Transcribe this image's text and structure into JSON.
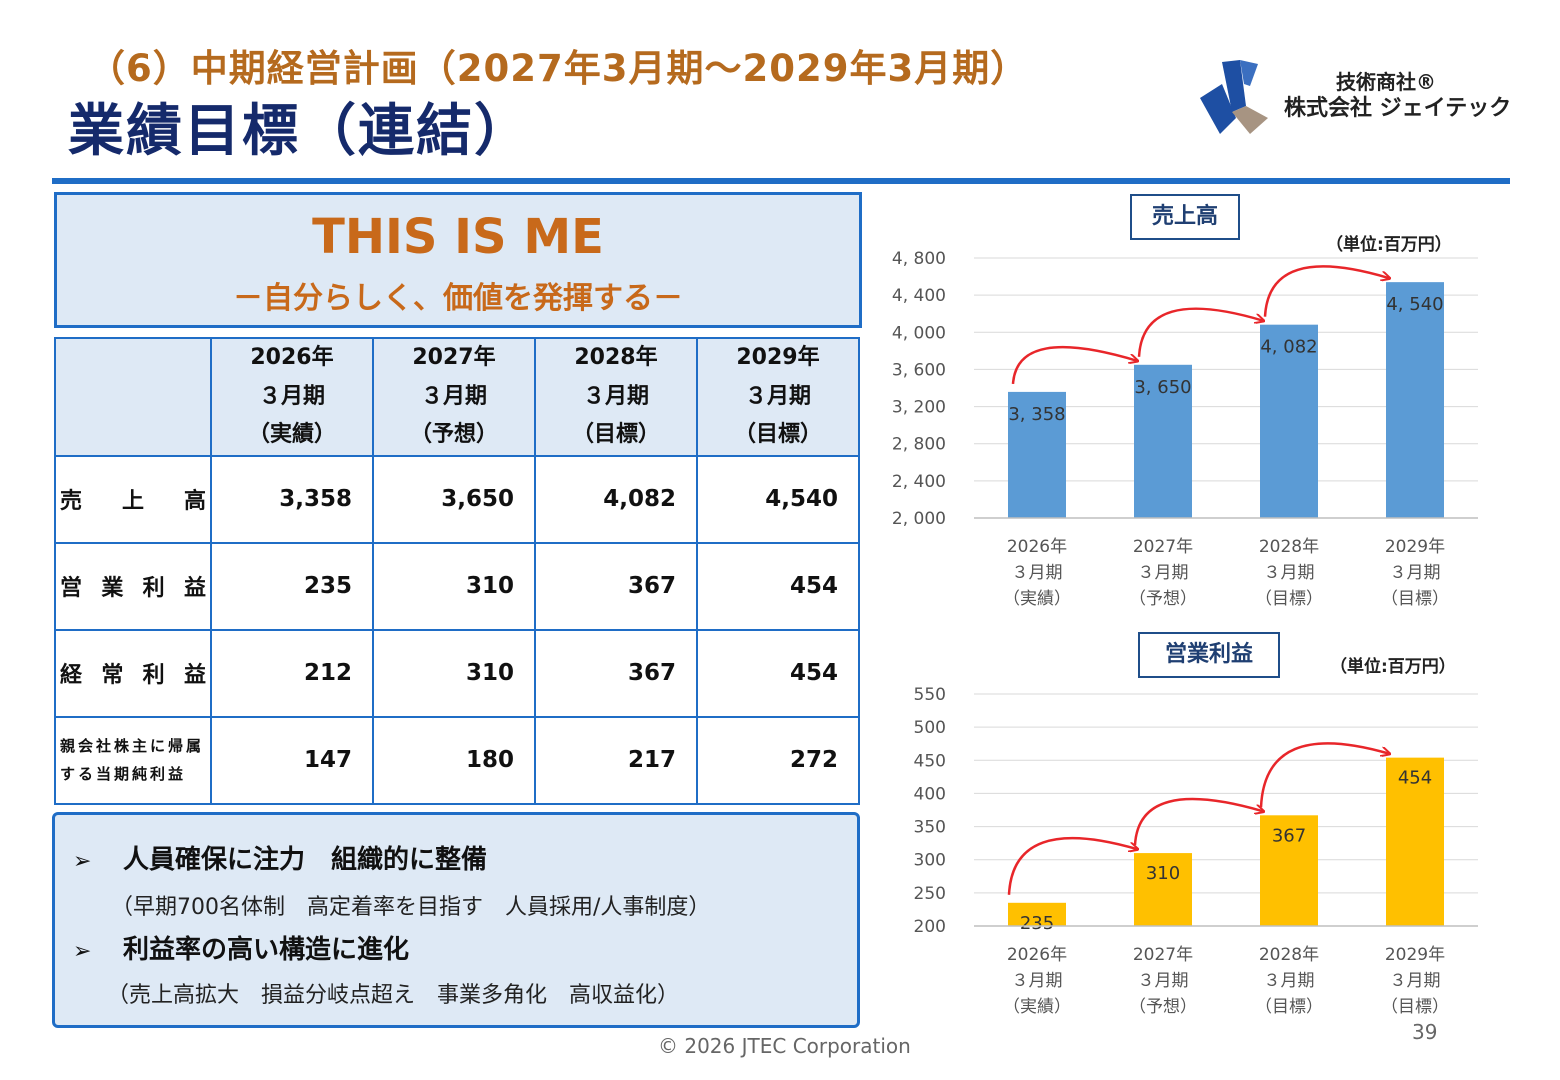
{
  "header": {
    "subtitle": "（6）中期経営計画（2027年3月期～2029年3月期）",
    "title": "業績目標（連結）",
    "logo_line1": "技術商社®",
    "logo_line2": "株式会社 ジェイテック",
    "brand_color": "#1f6dc6"
  },
  "banner": {
    "main": "THIS IS ME",
    "sub": "－自分らしく、価値を発揮する－"
  },
  "table": {
    "columns": [
      {
        "year": "2026年",
        "period": "３月期",
        "status": "（実績）"
      },
      {
        "year": "2027年",
        "period": "３月期",
        "status": "（予想）"
      },
      {
        "year": "2028年",
        "period": "３月期",
        "status": "（目標）"
      },
      {
        "year": "2029年",
        "period": "３月期",
        "status": "（目標）"
      }
    ],
    "rows": [
      {
        "label_chars": [
          "売",
          "上",
          "高"
        ],
        "values": [
          "3,358",
          "3,650",
          "4,082",
          "4,540"
        ]
      },
      {
        "label_chars": [
          "営",
          "業",
          "利",
          "益"
        ],
        "values": [
          "235",
          "310",
          "367",
          "454"
        ]
      },
      {
        "label_chars": [
          "経",
          "常",
          "利",
          "益"
        ],
        "values": [
          "212",
          "310",
          "367",
          "454"
        ]
      },
      {
        "label_line1": "親会社株主に帰属",
        "label_line2": "する当期純利益",
        "values": [
          "147",
          "180",
          "217",
          "272"
        ]
      }
    ]
  },
  "notes": {
    "bullet1": "人員確保に注力　組織的に整備",
    "sub1": "（早期700名体制　高定着率を目指す　人員採用/人事制度）",
    "bullet2": "利益率の高い構造に進化",
    "sub2": "（売上高拡大　損益分岐点超え　事業多角化　高収益化）",
    "marker": "➢"
  },
  "footer": {
    "copyright": "© 2026 JTEC Corporation",
    "page": "39"
  },
  "chart_data": [
    {
      "type": "bar",
      "title": "売上高",
      "unit": "（単位:百万円）",
      "categories": [
        [
          "2026年",
          "３月期",
          "（実績）"
        ],
        [
          "2027年",
          "３月期",
          "（予想）"
        ],
        [
          "2028年",
          "３月期",
          "（目標）"
        ],
        [
          "2029年",
          "３月期",
          "（目標）"
        ]
      ],
      "values": [
        3358,
        3650,
        4082,
        4540
      ],
      "value_labels": [
        "3, 358",
        "3, 650",
        "4, 082",
        "4, 540"
      ],
      "ylim": [
        2000,
        4800
      ],
      "yticks": [
        2000,
        2400,
        2800,
        3200,
        3600,
        4000,
        4400,
        4800
      ],
      "ytick_labels": [
        "2, 000",
        "2, 400",
        "2, 800",
        "3, 200",
        "3, 600",
        "4, 000",
        "4, 400",
        "4, 800"
      ],
      "color": "#5b9bd5",
      "arrow_color": "#e8262a",
      "grid": true
    },
    {
      "type": "bar",
      "title": "営業利益",
      "unit": "（単位:百万円）",
      "categories": [
        [
          "2026年",
          "３月期",
          "（実績）"
        ],
        [
          "2027年",
          "３月期",
          "（予想）"
        ],
        [
          "2028年",
          "３月期",
          "（目標）"
        ],
        [
          "2029年",
          "３月期",
          "（目標）"
        ]
      ],
      "values": [
        235,
        310,
        367,
        454
      ],
      "value_labels": [
        "235",
        "310",
        "367",
        "454"
      ],
      "ylim": [
        200,
        550
      ],
      "yticks": [
        200,
        250,
        300,
        350,
        400,
        450,
        500,
        550
      ],
      "ytick_labels": [
        "200",
        "250",
        "300",
        "350",
        "400",
        "450",
        "500",
        "550"
      ],
      "color": "#ffc000",
      "arrow_color": "#e8262a",
      "grid": true
    }
  ]
}
